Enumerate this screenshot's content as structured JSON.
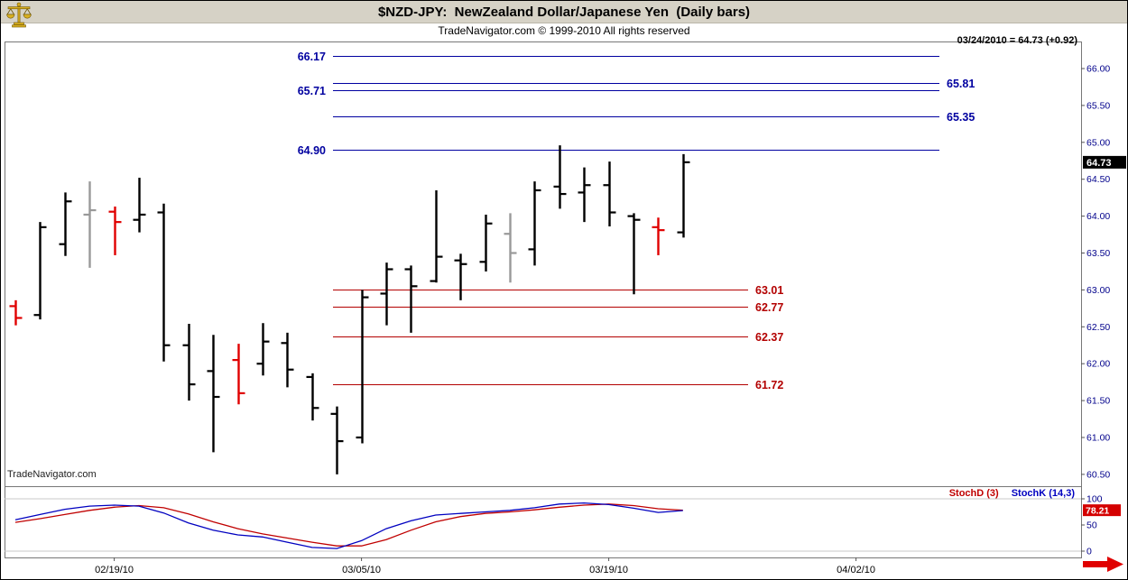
{
  "header": {
    "title": "$NZD-JPY:  NewZealand Dollar/Japanese Yen  (Daily bars)",
    "copyright": "TradeNavigator.com © 1999-2010 All rights reserved",
    "quote_readout": "03/24/2010 = 64.73 (+0.92)"
  },
  "watermark": "TradeNavigator.com",
  "indicators": {
    "stoch_d_label": "StochD (3)",
    "stoch_k_label": "StochK (14,3)"
  },
  "colors": {
    "header_bg": "#d6d2c6",
    "resistance": "#0000a0",
    "support": "#b30000",
    "bar_black": "#000000",
    "bar_red": "#e00000",
    "bar_gray": "#999999",
    "axis_text": "#00008b",
    "stoch_d": "#c00000",
    "stoch_k": "#0000c0",
    "price_badge_bg": "#000000",
    "stoch_badge_bg": "#d40000",
    "arrow_red": "#e00000"
  },
  "chart_data": [
    {
      "type": "ohlc",
      "title": "$NZD-JPY NewZealand Dollar/Japanese Yen (Daily bars)",
      "ylim": [
        60.35,
        66.37
      ],
      "y_ticks": [
        66.0,
        65.5,
        65.0,
        64.5,
        64.0,
        63.5,
        63.0,
        62.5,
        62.0,
        61.5,
        61.0,
        60.5
      ],
      "x_tick_labels": [
        "02/19/10",
        "03/05/10",
        "03/19/10",
        "04/02/10"
      ],
      "x_tick_bar_indices": [
        4,
        14,
        24,
        34
      ],
      "last_close": 64.73,
      "change": "+0.92",
      "resistance_levels": [
        {
          "price": 66.17,
          "label": "66.17",
          "side": "left"
        },
        {
          "price": 65.81,
          "label": "65.81",
          "side": "right"
        },
        {
          "price": 65.71,
          "label": "65.71",
          "side": "left"
        },
        {
          "price": 65.35,
          "label": "65.35",
          "side": "right"
        },
        {
          "price": 64.9,
          "label": "64.90",
          "side": "left"
        }
      ],
      "support_levels": [
        {
          "price": 63.01,
          "label": "63.01"
        },
        {
          "price": 62.77,
          "label": "62.77"
        },
        {
          "price": 62.37,
          "label": "62.37"
        },
        {
          "price": 61.72,
          "label": "61.72"
        }
      ],
      "bars": [
        {
          "date": "02/15/10",
          "o": 62.78,
          "h": 62.86,
          "l": 62.52,
          "c": 62.62,
          "color": "red"
        },
        {
          "date": "02/16/10",
          "o": 62.66,
          "h": 63.92,
          "l": 62.6,
          "c": 63.85,
          "color": "black"
        },
        {
          "date": "02/17/10",
          "o": 63.62,
          "h": 64.32,
          "l": 63.46,
          "c": 64.2,
          "color": "black"
        },
        {
          "date": "02/18/10",
          "o": 64.02,
          "h": 64.47,
          "l": 63.3,
          "c": 64.08,
          "color": "gray"
        },
        {
          "date": "02/19/10",
          "o": 64.06,
          "h": 64.13,
          "l": 63.47,
          "c": 63.92,
          "color": "red"
        },
        {
          "date": "02/22/10",
          "o": 63.95,
          "h": 64.52,
          "l": 63.78,
          "c": 64.02,
          "color": "black"
        },
        {
          "date": "02/23/10",
          "o": 64.05,
          "h": 64.17,
          "l": 62.03,
          "c": 62.25,
          "color": "black"
        },
        {
          "date": "02/24/10",
          "o": 62.25,
          "h": 62.54,
          "l": 61.5,
          "c": 61.72,
          "color": "black"
        },
        {
          "date": "02/25/10",
          "o": 61.9,
          "h": 62.39,
          "l": 60.8,
          "c": 61.55,
          "color": "black"
        },
        {
          "date": "02/26/10",
          "o": 62.05,
          "h": 62.27,
          "l": 61.45,
          "c": 61.6,
          "color": "red"
        },
        {
          "date": "03/01/10",
          "o": 62.0,
          "h": 62.55,
          "l": 61.84,
          "c": 62.3,
          "color": "black"
        },
        {
          "date": "03/02/10",
          "o": 62.28,
          "h": 62.42,
          "l": 61.68,
          "c": 61.92,
          "color": "black"
        },
        {
          "date": "03/03/10",
          "o": 61.82,
          "h": 61.87,
          "l": 61.23,
          "c": 61.4,
          "color": "black"
        },
        {
          "date": "03/04/10",
          "o": 61.32,
          "h": 61.42,
          "l": 60.5,
          "c": 60.95,
          "color": "black"
        },
        {
          "date": "03/05/10",
          "o": 61.0,
          "h": 63.0,
          "l": 60.92,
          "c": 62.9,
          "color": "black"
        },
        {
          "date": "03/08/10",
          "o": 62.95,
          "h": 63.37,
          "l": 62.52,
          "c": 63.28,
          "color": "black"
        },
        {
          "date": "03/09/10",
          "o": 63.28,
          "h": 63.33,
          "l": 62.42,
          "c": 63.05,
          "color": "black"
        },
        {
          "date": "03/10/10",
          "o": 63.12,
          "h": 64.35,
          "l": 63.1,
          "c": 63.45,
          "color": "black"
        },
        {
          "date": "03/11/10",
          "o": 63.4,
          "h": 63.49,
          "l": 62.86,
          "c": 63.35,
          "color": "black"
        },
        {
          "date": "03/12/10",
          "o": 63.38,
          "h": 64.02,
          "l": 63.25,
          "c": 63.9,
          "color": "black"
        },
        {
          "date": "03/15/10",
          "o": 63.76,
          "h": 64.04,
          "l": 63.1,
          "c": 63.5,
          "color": "gray"
        },
        {
          "date": "03/16/10",
          "o": 63.55,
          "h": 64.47,
          "l": 63.33,
          "c": 64.35,
          "color": "black"
        },
        {
          "date": "03/17/10",
          "o": 64.4,
          "h": 64.96,
          "l": 64.1,
          "c": 64.3,
          "color": "black"
        },
        {
          "date": "03/18/10",
          "o": 64.32,
          "h": 64.66,
          "l": 63.92,
          "c": 64.42,
          "color": "black"
        },
        {
          "date": "03/19/10",
          "o": 64.42,
          "h": 64.74,
          "l": 63.86,
          "c": 64.05,
          "color": "black"
        },
        {
          "date": "03/22/10",
          "o": 64.0,
          "h": 64.04,
          "l": 62.94,
          "c": 63.95,
          "color": "black"
        },
        {
          "date": "03/23/10",
          "o": 63.85,
          "h": 63.98,
          "l": 63.47,
          "c": 63.81,
          "color": "red"
        },
        {
          "date": "03/24/10",
          "o": 63.78,
          "h": 64.84,
          "l": 63.71,
          "c": 64.73,
          "color": "black"
        }
      ]
    },
    {
      "type": "line",
      "title": "Stochastics",
      "ylim": [
        0,
        100
      ],
      "y_ticks": [
        100,
        50,
        0
      ],
      "legend_position": "top-right",
      "series": [
        {
          "name": "StochD (3)",
          "color": "#c00000",
          "values": [
            55,
            62,
            70,
            78,
            84,
            87,
            83,
            71,
            56,
            43,
            33,
            25,
            17,
            10,
            10,
            22,
            40,
            56,
            66,
            72,
            75,
            79,
            84,
            88,
            90,
            87,
            81,
            78.21
          ]
        },
        {
          "name": "StochK (14,3)",
          "color": "#0000c0",
          "values": [
            60,
            70,
            80,
            86,
            88,
            86,
            73,
            54,
            40,
            31,
            27,
            17,
            7,
            5,
            20,
            43,
            58,
            69,
            72,
            75,
            78,
            83,
            90,
            92,
            89,
            82,
            74,
            77.5
          ]
        }
      ],
      "last_value_badge": 78.21
    }
  ]
}
